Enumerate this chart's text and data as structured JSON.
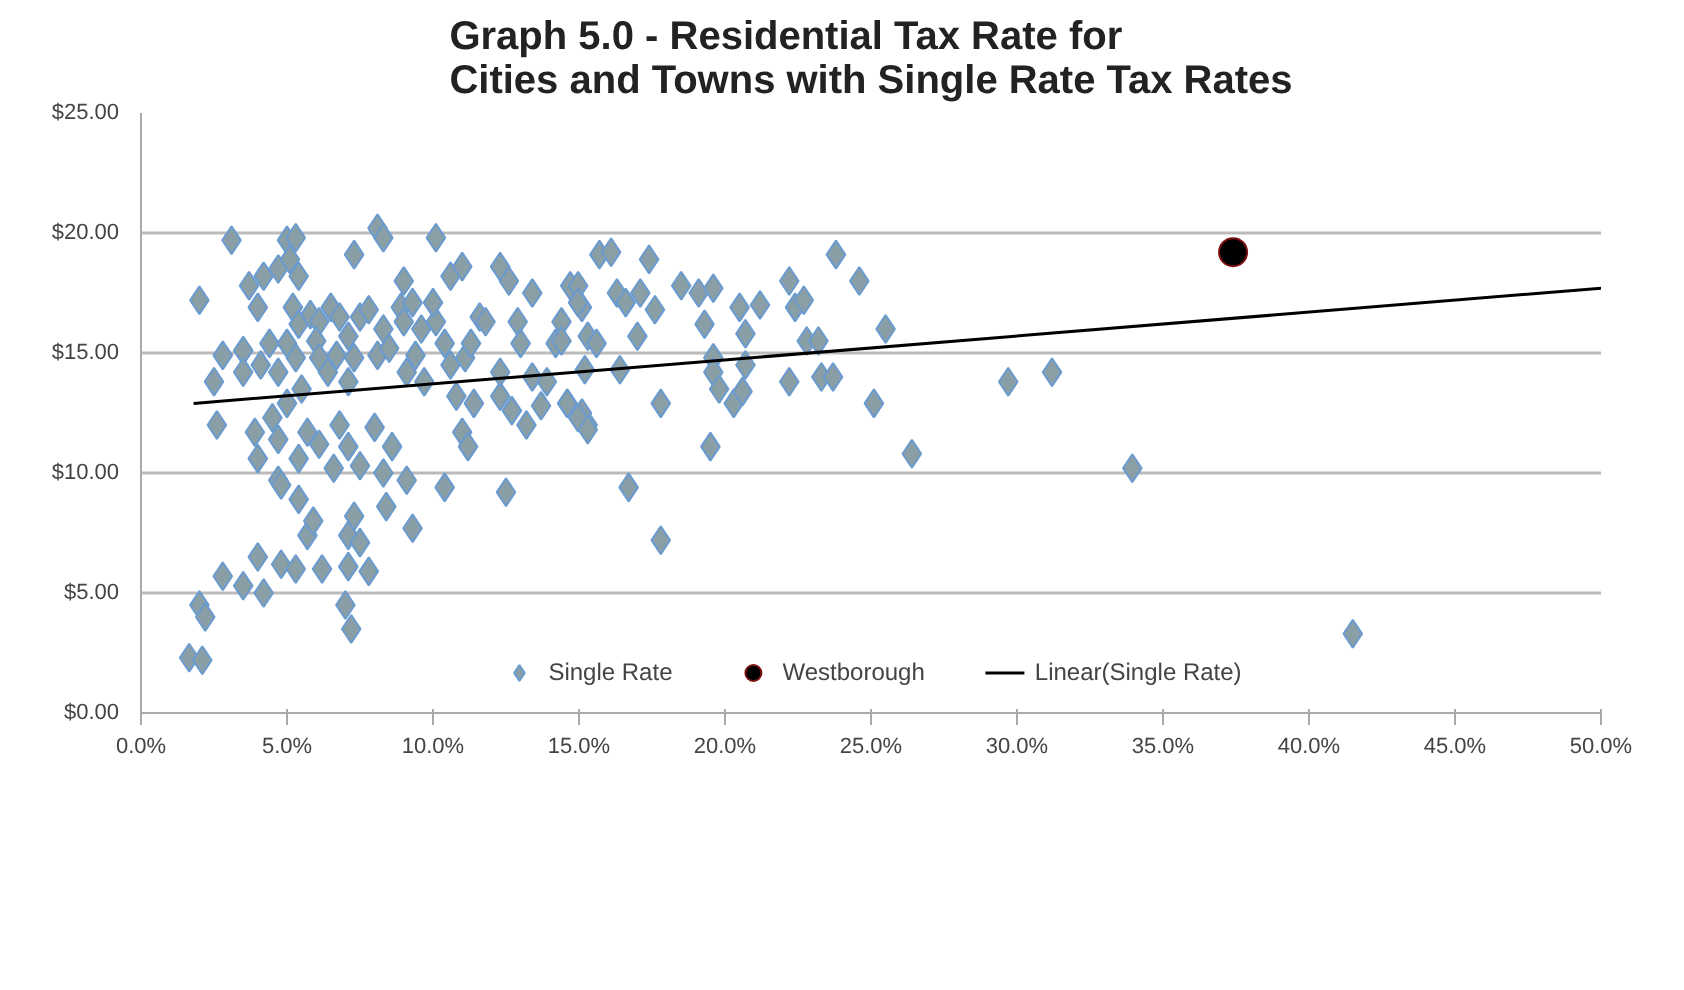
{
  "chart_data": {
    "type": "scatter",
    "title": "Graph 5.0 - Residential Tax Rate for Cities and Towns with Single Rate Tax Rates",
    "xlim": [
      0,
      50
    ],
    "ylim": [
      0,
      25
    ],
    "xticks": [
      {
        "value": 0,
        "label": "0.0%"
      },
      {
        "value": 5,
        "label": "5.0%"
      },
      {
        "value": 10,
        "label": "10.0%"
      },
      {
        "value": 15,
        "label": "15.0%"
      },
      {
        "value": 20,
        "label": "20.0%"
      },
      {
        "value": 25,
        "label": "25.0%"
      },
      {
        "value": 30,
        "label": "30.0%"
      },
      {
        "value": 35,
        "label": "35.0%"
      },
      {
        "value": 40,
        "label": "40.0%"
      },
      {
        "value": 45,
        "label": "45.0%"
      },
      {
        "value": 50,
        "label": "50.0%"
      }
    ],
    "yticks": [
      {
        "value": 0,
        "label": "$0.00"
      },
      {
        "value": 5,
        "label": "$5.00"
      },
      {
        "value": 10,
        "label": "$10.00"
      },
      {
        "value": 15,
        "label": "$15.00"
      },
      {
        "value": 20,
        "label": "$20.00"
      },
      {
        "value": 25,
        "label": "$25.00"
      }
    ],
    "grid": "y",
    "legend": "bottom",
    "series": [
      {
        "name": "Single Rate",
        "marker": "diamond",
        "color": "#8a9ea6",
        "x": [
          1.65,
          2.1,
          2.0,
          2.2,
          2.8,
          3.5,
          4.0,
          4.2,
          4.8,
          5.3,
          6.2,
          7.1,
          7.8,
          7.0,
          7.2,
          5.7,
          5.9,
          5.4,
          7.1,
          7.3,
          7.5,
          8.4,
          9.3,
          10.4,
          9.1,
          8.3,
          7.5,
          6.6,
          4.7,
          4.8,
          5.4,
          4.0,
          3.9,
          4.7,
          5.7,
          6.1,
          6.8,
          7.1,
          8.0,
          8.6,
          2.6,
          4.5,
          5.0,
          12.5,
          11.0,
          11.2,
          11.4,
          12.3,
          12.7,
          13.2,
          13.7,
          14.6,
          15.3,
          2.0,
          3.1,
          2.8,
          3.5,
          3.5,
          4.1,
          4.4,
          3.7,
          4.0,
          4.2,
          4.7,
          5.0,
          5.3,
          5.1,
          5.4,
          5.2,
          5.4,
          5.8,
          6.1,
          6.5,
          6.8,
          7.1,
          7.5,
          7.8,
          6.0,
          6.1,
          6.4,
          6.7,
          7.3,
          5.3,
          4.7,
          5.0,
          5.5,
          7.3,
          8.1,
          8.3,
          9.0,
          8.9,
          8.3,
          8.1,
          8.5,
          9.0,
          9.3,
          9.6,
          9.4,
          9.1,
          9.7,
          10.1,
          10.0,
          10.1,
          10.6,
          11.0,
          10.6,
          10.4,
          11.1,
          10.8,
          11.3,
          11.6,
          11.8,
          12.3,
          12.6,
          13.4,
          12.9,
          13.0,
          14.2,
          14.4,
          14.7,
          15.1,
          15.3,
          12.3,
          13.4,
          13.9,
          15.1,
          2.5,
          7.1,
          14.4,
          14.6,
          14.97,
          15.3,
          15.2,
          15.6,
          14.97,
          14.97,
          15.7,
          16.1,
          16.4,
          16.7,
          17.0,
          16.3,
          16.6,
          17.1,
          17.4,
          17.6,
          17.8,
          17.8,
          18.5,
          19.1,
          19.6,
          19.3,
          19.6,
          19.6,
          19.8,
          20.3,
          20.6,
          20.7,
          20.5,
          20.7,
          21.2,
          19.5,
          22.2,
          22.4,
          22.7,
          22.8,
          23.2,
          22.2,
          23.3,
          23.7,
          23.8,
          24.6,
          25.5,
          25.1,
          26.4,
          29.7,
          31.2,
          33.95,
          41.5
        ],
        "values": [
          2.3,
          2.2,
          4.5,
          4.0,
          5.7,
          5.3,
          6.5,
          5.0,
          6.2,
          6.0,
          6.0,
          6.1,
          5.9,
          4.5,
          3.5,
          7.4,
          8.0,
          8.9,
          7.4,
          8.2,
          7.1,
          8.6,
          7.7,
          9.4,
          9.7,
          10.0,
          10.3,
          10.2,
          9.7,
          9.5,
          10.6,
          10.6,
          11.7,
          11.4,
          11.7,
          11.2,
          12.0,
          11.1,
          11.9,
          11.1,
          12.0,
          12.3,
          12.9,
          9.2,
          11.7,
          11.1,
          12.9,
          13.2,
          12.6,
          12.0,
          12.8,
          12.9,
          12.0,
          17.2,
          19.7,
          14.9,
          15.1,
          14.2,
          14.5,
          15.4,
          17.8,
          16.9,
          18.2,
          18.5,
          19.7,
          19.8,
          18.9,
          18.2,
          16.9,
          16.2,
          16.6,
          16.3,
          16.9,
          16.5,
          15.7,
          16.5,
          16.8,
          15.5,
          14.8,
          14.2,
          14.9,
          14.8,
          14.8,
          14.2,
          15.4,
          13.5,
          19.1,
          20.2,
          19.8,
          18.0,
          16.9,
          16.0,
          14.9,
          15.2,
          16.3,
          17.1,
          16.0,
          14.9,
          14.2,
          13.8,
          16.3,
          17.1,
          19.8,
          18.2,
          18.6,
          14.5,
          15.4,
          14.8,
          13.2,
          15.4,
          16.5,
          16.3,
          18.6,
          18.0,
          17.5,
          16.3,
          15.4,
          15.4,
          16.3,
          17.8,
          16.9,
          15.7,
          14.2,
          14.0,
          13.8,
          12.5,
          13.8,
          13.8,
          15.5,
          12.9,
          12.3,
          11.8,
          14.3,
          15.4,
          17.8,
          17.1,
          19.1,
          19.2,
          14.3,
          9.4,
          15.7,
          17.5,
          17.1,
          17.5,
          18.9,
          16.8,
          12.9,
          7.2,
          17.8,
          17.5,
          17.7,
          16.2,
          14.8,
          14.2,
          13.5,
          12.9,
          13.4,
          14.5,
          16.9,
          15.8,
          17.0,
          11.1,
          18.0,
          16.9,
          17.2,
          15.5,
          15.5,
          13.8,
          14.0,
          14.0,
          19.1,
          18.0,
          16.0,
          12.9,
          10.8,
          13.8,
          14.2,
          10.2,
          3.3
        ]
      },
      {
        "name": "Westborough",
        "marker": "circle",
        "color": "#000000",
        "x": [
          37.4
        ],
        "values": [
          19.2
        ]
      },
      {
        "name": "Linear(Single Rate)",
        "type": "line",
        "marker": "none",
        "color": "#000000",
        "x": [
          1.8,
          50
        ],
        "values": [
          12.9,
          17.7
        ]
      }
    ]
  }
}
